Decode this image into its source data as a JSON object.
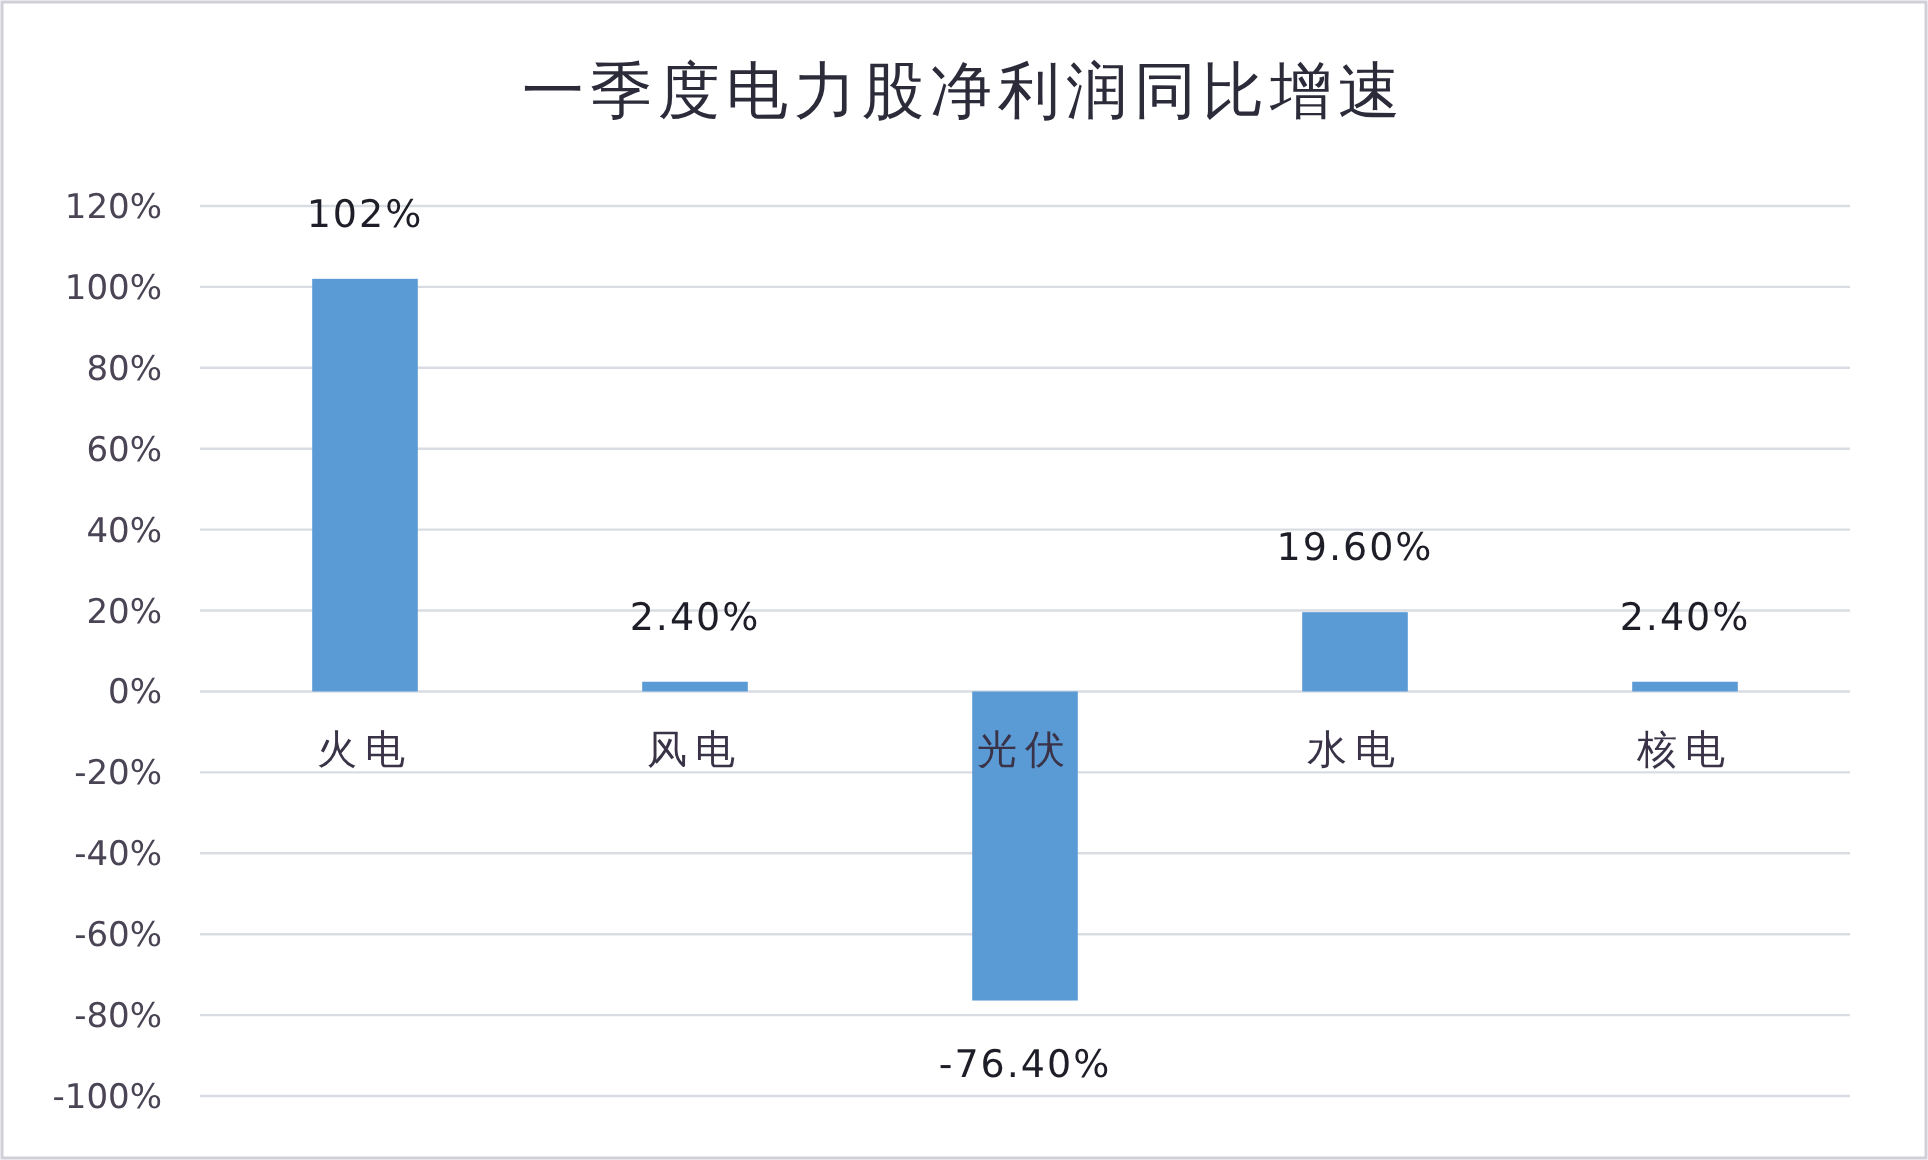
{
  "chart_data": {
    "type": "bar",
    "title": "一季度电力股净利润同比增速",
    "categories": [
      "火电",
      "风电",
      "光伏",
      "水电",
      "核电"
    ],
    "values": [
      102,
      2.4,
      -76.4,
      19.6,
      2.4
    ],
    "value_labels": [
      "102%",
      "2.40%",
      "-76.40%",
      "19.60%",
      "2.40%"
    ],
    "color": "#5b9bd5",
    "ylim": [
      -100,
      120
    ],
    "yticks": [
      {
        "value": -100,
        "label": "-100%"
      },
      {
        "value": -80,
        "label": "-80%"
      },
      {
        "value": -60,
        "label": "-60%"
      },
      {
        "value": -40,
        "label": "-40%"
      },
      {
        "value": -20,
        "label": "-20%"
      },
      {
        "value": 0,
        "label": "0%"
      },
      {
        "value": 20,
        "label": "20%"
      },
      {
        "value": 40,
        "label": "40%"
      },
      {
        "value": 60,
        "label": "60%"
      },
      {
        "value": 80,
        "label": "80%"
      },
      {
        "value": 100,
        "label": "100%"
      },
      {
        "value": 120,
        "label": "120%"
      }
    ],
    "grid": "y"
  }
}
